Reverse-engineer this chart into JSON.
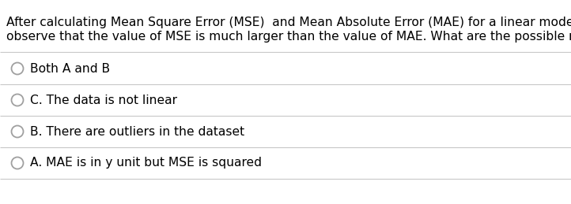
{
  "background_color": "#ffffff",
  "question_text_line1": "After calculating Mean Square Error (MSE)  and Mean Absolute Error (MAE) for a linear model, we",
  "question_text_line2": "observe that the value of MSE is much larger than the value of MAE. What are the possible reasons?",
  "options": [
    "Both A and B",
    "C. The data is not linear",
    "B. There are outliers in the dataset",
    "A. MAE is in y unit but MSE is squared"
  ],
  "text_color": "#000000",
  "line_color": "#c8c8c8",
  "circle_edge_color": "#a0a0a0",
  "question_fontsize": 11.2,
  "option_fontsize": 11.2,
  "fig_width": 7.22,
  "fig_height": 2.59
}
